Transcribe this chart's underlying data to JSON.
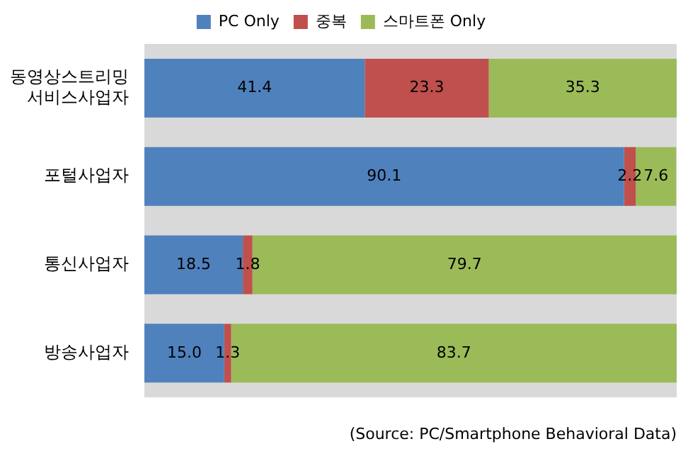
{
  "chart_data": {
    "type": "bar",
    "orientation": "horizontal",
    "stacked": true,
    "categories": [
      "동영상스트리밍\n서비스사업자",
      "포털사업자",
      "통신사업자",
      "방송사업자"
    ],
    "series": [
      {
        "name": "PC Only",
        "color": "#4f81bd",
        "values": [
          41.4,
          90.1,
          18.5,
          15.0
        ],
        "value_labels": [
          "41.4",
          "90.1",
          "18.5",
          "15.0"
        ]
      },
      {
        "name": "중복",
        "color": "#c0504d",
        "values": [
          23.3,
          2.2,
          1.8,
          1.3
        ],
        "value_labels": [
          "23.3",
          "2.2",
          "1.8",
          "1.3"
        ]
      },
      {
        "name": "스마트폰 Only",
        "color": "#9bbb59",
        "values": [
          35.3,
          7.6,
          79.7,
          83.7
        ],
        "value_labels": [
          "35.3",
          "7.6",
          "79.7",
          "83.7"
        ]
      }
    ],
    "xlim": [
      0,
      100
    ],
    "tick_labels": "y",
    "legend": "top",
    "annotations": [
      "(Source: PC/Smartphone Behavioral Data)"
    ]
  }
}
